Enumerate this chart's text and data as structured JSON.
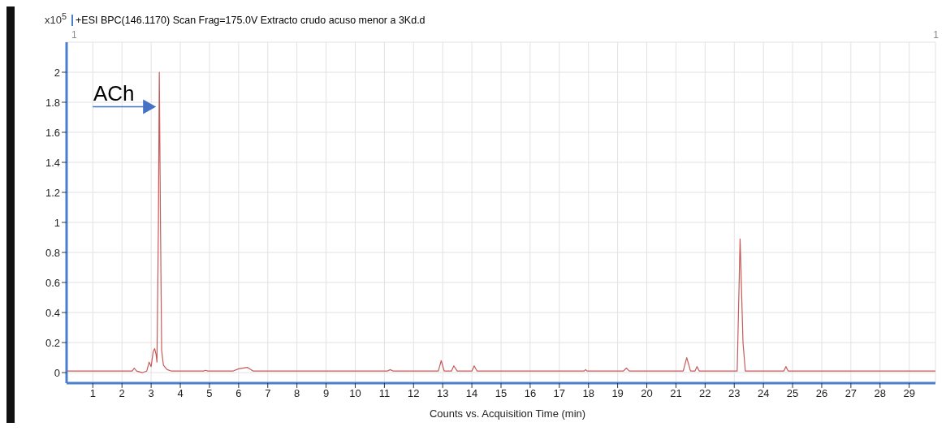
{
  "chart_data": {
    "type": "line",
    "title": "+ESI BPC(146.1170) Scan Frag=175.0V Extracto crudo acuso menor a 3Kd.d",
    "xlabel": "Counts vs. Acquisition Time (min)",
    "ylabel": "x10$^{5}$",
    "x": [
      0.1,
      1,
      2,
      2.35,
      2.42,
      2.5,
      2.7,
      2.85,
      2.93,
      3.0,
      3.07,
      3.12,
      3.17,
      3.2,
      3.25,
      3.28,
      3.32,
      3.36,
      3.42,
      3.55,
      3.7,
      4.8,
      4.85,
      4.95,
      5.8,
      6.0,
      6.3,
      6.5,
      11.1,
      11.2,
      11.3,
      12.85,
      12.95,
      13.05,
      13.3,
      13.38,
      13.5,
      14.0,
      14.08,
      14.18,
      17.85,
      17.9,
      17.95,
      19.2,
      19.3,
      19.4,
      21.25,
      21.37,
      21.5,
      21.65,
      21.72,
      21.8,
      23.1,
      23.2,
      23.3,
      23.38,
      24.7,
      24.77,
      24.85,
      25.5,
      29.9
    ],
    "series": [
      {
        "color": "#c85a5a",
        "values": [
          0.01,
          0.01,
          0.01,
          0.01,
          0.03,
          0.01,
          0.0,
          0.01,
          0.07,
          0.04,
          0.14,
          0.16,
          0.12,
          0.07,
          1.0,
          2.0,
          1.0,
          0.15,
          0.05,
          0.02,
          0.01,
          0.01,
          0.015,
          0.01,
          0.01,
          0.025,
          0.035,
          0.01,
          0.01,
          0.02,
          0.01,
          0.01,
          0.08,
          0.01,
          0.01,
          0.045,
          0.01,
          0.01,
          0.045,
          0.01,
          0.01,
          0.02,
          0.01,
          0.01,
          0.03,
          0.01,
          0.01,
          0.1,
          0.01,
          0.01,
          0.04,
          0.01,
          0.01,
          0.89,
          0.2,
          0.01,
          0.01,
          0.04,
          0.01,
          0.01,
          0.01
        ]
      }
    ],
    "xlim": [
      0.1,
      29.9
    ],
    "xticks": [
      1,
      2,
      3,
      4,
      5,
      6,
      7,
      8,
      9,
      10,
      11,
      12,
      13,
      14,
      15,
      16,
      17,
      18,
      19,
      20,
      21,
      22,
      23,
      24,
      25,
      26,
      27,
      28,
      29
    ],
    "ylim": [
      -0.07,
      2.2
    ],
    "yticks": [
      0,
      0.2,
      0.4,
      0.6,
      0.8,
      1,
      1.2,
      1.4,
      1.6,
      1.8,
      2
    ],
    "grid": true,
    "marker": "none",
    "line_style": "solid",
    "annotations": [
      {
        "text": "ACh",
        "x": 3.28,
        "y": 1.77
      },
      "1",
      "1"
    ]
  }
}
